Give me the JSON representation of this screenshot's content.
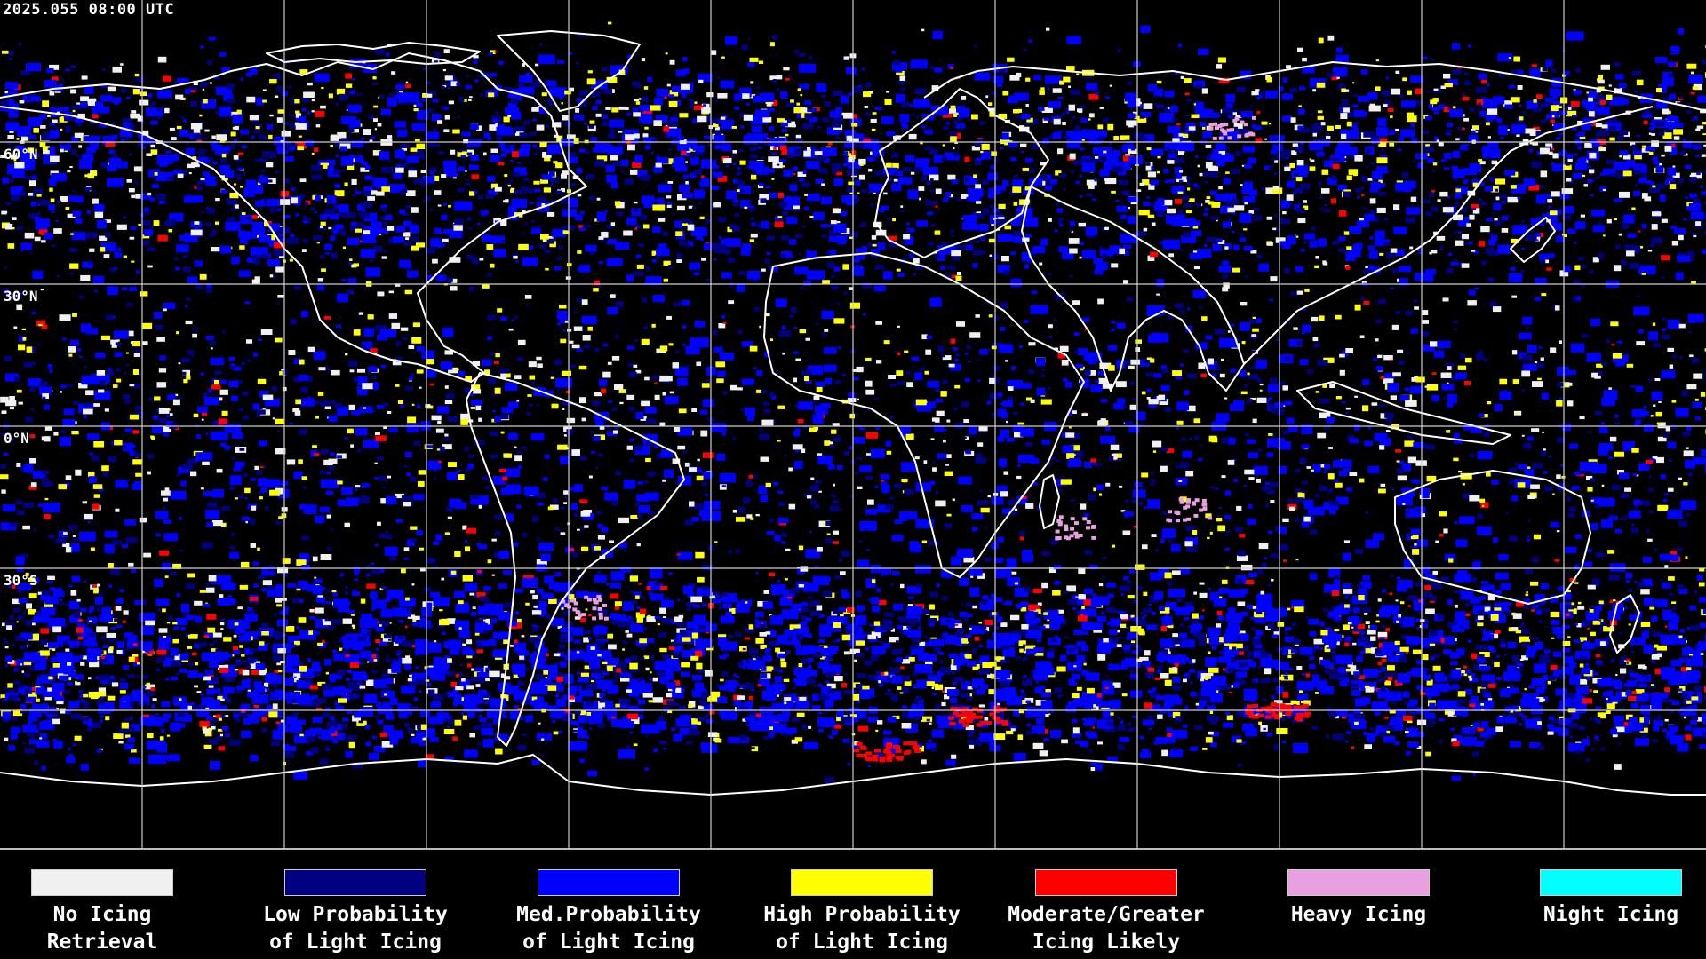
{
  "header": {
    "timestamp": "2025.055 08:00 UTC"
  },
  "map": {
    "background_color": "#000000",
    "grid_color": "#cccccc",
    "coastline_color": "#ffffff",
    "lat_labels": [
      "60°N",
      "30°N",
      "0°N",
      "30°S"
    ],
    "lat_values": [
      60,
      30,
      0,
      -30
    ]
  },
  "legend": {
    "items": [
      {
        "label": "No Icing\nRetrieval",
        "color": "#f0f0f0"
      },
      {
        "label": "Low Probability\nof Light Icing",
        "color": "#000080"
      },
      {
        "label": "Med.Probability\nof Light Icing",
        "color": "#0000ff"
      },
      {
        "label": "High Probability\nof Light Icing",
        "color": "#ffff00"
      },
      {
        "label": "Moderate/Greater\nIcing Likely",
        "color": "#ff0000"
      },
      {
        "label": "Heavy Icing",
        "color": "#e8a0e0"
      },
      {
        "label": "Night Icing",
        "color": "#00ffff"
      }
    ]
  }
}
